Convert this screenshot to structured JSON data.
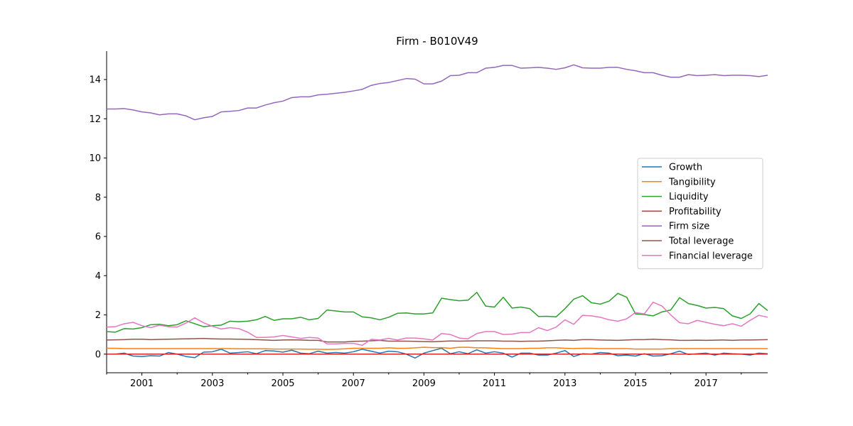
{
  "chart_data": {
    "type": "line",
    "title": "Firm - B010V49",
    "xlabel": "",
    "ylabel": "",
    "xlim": [
      2000.0,
      2018.75
    ],
    "ylim": [
      -0.95,
      15.45
    ],
    "x_ticks": [
      2001,
      2003,
      2005,
      2007,
      2009,
      2011,
      2013,
      2015,
      2017
    ],
    "y_ticks": [
      0,
      2,
      4,
      6,
      8,
      10,
      12,
      14
    ],
    "grid": false,
    "legend_position": "center-right",
    "x": [
      2000.0,
      2000.25,
      2000.5,
      2000.75,
      2001.0,
      2001.25,
      2001.5,
      2001.75,
      2002.0,
      2002.25,
      2002.5,
      2002.75,
      2003.0,
      2003.25,
      2003.5,
      2003.75,
      2004.0,
      2004.25,
      2004.5,
      2004.75,
      2005.0,
      2005.25,
      2005.5,
      2005.75,
      2006.0,
      2006.25,
      2006.5,
      2006.75,
      2007.0,
      2007.25,
      2007.5,
      2007.75,
      2008.0,
      2008.25,
      2008.5,
      2008.75,
      2009.0,
      2009.25,
      2009.5,
      2009.75,
      2010.0,
      2010.25,
      2010.5,
      2010.75,
      2011.0,
      2011.25,
      2011.5,
      2011.75,
      2012.0,
      2012.25,
      2012.5,
      2012.75,
      2013.0,
      2013.25,
      2013.5,
      2013.75,
      2014.0,
      2014.25,
      2014.5,
      2014.75,
      2015.0,
      2015.25,
      2015.5,
      2015.75,
      2016.0,
      2016.25,
      2016.5,
      2016.75,
      2017.0,
      2017.25,
      2017.5,
      2017.75,
      2018.0,
      2018.25,
      2018.5,
      2018.75
    ],
    "series": [
      {
        "name": "Growth",
        "color": "#1f77b4",
        "values": [
          0.0,
          0.0,
          0.05,
          -0.1,
          -0.12,
          -0.08,
          -0.1,
          0.08,
          0.0,
          -0.12,
          -0.18,
          0.1,
          0.12,
          0.25,
          0.05,
          0.08,
          0.12,
          0.02,
          0.18,
          0.16,
          0.1,
          0.2,
          0.05,
          0.02,
          0.15,
          0.05,
          0.08,
          0.05,
          0.12,
          0.25,
          0.15,
          0.05,
          0.15,
          0.12,
          0.0,
          -0.2,
          0.05,
          0.18,
          0.3,
          0.02,
          0.12,
          0.02,
          0.22,
          0.05,
          0.12,
          0.05,
          -0.15,
          0.05,
          0.05,
          -0.05,
          -0.05,
          0.05,
          0.18,
          -0.12,
          0.02,
          0.0,
          0.08,
          0.05,
          -0.08,
          -0.05,
          -0.1,
          0.02,
          -0.1,
          -0.08,
          0.02,
          0.15,
          -0.02,
          0.02,
          0.05,
          -0.05,
          0.05,
          0.02,
          0.0,
          -0.05,
          0.05,
          0.02
        ]
      },
      {
        "name": "Tangibility",
        "color": "#ff7f0e",
        "values": [
          0.3,
          0.3,
          0.28,
          0.28,
          0.28,
          0.28,
          0.28,
          0.28,
          0.28,
          0.28,
          0.28,
          0.28,
          0.28,
          0.28,
          0.28,
          0.27,
          0.27,
          0.27,
          0.27,
          0.26,
          0.26,
          0.26,
          0.26,
          0.25,
          0.25,
          0.24,
          0.25,
          0.27,
          0.3,
          0.3,
          0.3,
          0.3,
          0.32,
          0.3,
          0.3,
          0.32,
          0.35,
          0.33,
          0.33,
          0.3,
          0.35,
          0.35,
          0.32,
          0.32,
          0.3,
          0.28,
          0.28,
          0.28,
          0.3,
          0.3,
          0.32,
          0.32,
          0.3,
          0.28,
          0.3,
          0.3,
          0.28,
          0.28,
          0.28,
          0.28,
          0.26,
          0.26,
          0.26,
          0.26,
          0.28,
          0.28,
          0.28,
          0.28,
          0.28,
          0.28,
          0.28,
          0.28,
          0.28,
          0.28,
          0.28,
          0.28
        ]
      },
      {
        "name": "Liquidity",
        "color": "#2ca02c",
        "values": [
          1.15,
          1.12,
          1.3,
          1.28,
          1.35,
          1.5,
          1.52,
          1.45,
          1.5,
          1.7,
          1.55,
          1.4,
          1.45,
          1.48,
          1.68,
          1.65,
          1.68,
          1.75,
          1.92,
          1.72,
          1.8,
          1.8,
          1.88,
          1.75,
          1.82,
          2.25,
          2.2,
          2.15,
          2.15,
          1.9,
          1.85,
          1.75,
          1.88,
          2.08,
          2.1,
          2.05,
          2.05,
          2.1,
          2.85,
          2.78,
          2.72,
          2.75,
          3.15,
          2.45,
          2.4,
          2.9,
          2.35,
          2.4,
          2.32,
          1.92,
          1.93,
          1.9,
          2.32,
          2.8,
          2.98,
          2.62,
          2.55,
          2.7,
          3.1,
          2.9,
          2.05,
          2.02,
          1.95,
          2.15,
          2.25,
          2.88,
          2.58,
          2.48,
          2.35,
          2.38,
          2.32,
          1.95,
          1.82,
          2.05,
          2.58,
          2.22
        ]
      },
      {
        "name": "Profitability",
        "color": "#d62728",
        "values": [
          0.0,
          0.0,
          0.0,
          0.0,
          0.0,
          0.0,
          0.0,
          0.0,
          0.0,
          0.0,
          0.0,
          0.0,
          0.0,
          0.0,
          0.0,
          0.0,
          0.0,
          0.0,
          0.0,
          0.0,
          0.0,
          0.0,
          0.0,
          0.0,
          0.0,
          0.0,
          0.0,
          0.0,
          0.0,
          0.0,
          0.0,
          0.0,
          0.0,
          0.0,
          0.0,
          0.0,
          0.0,
          0.0,
          0.0,
          0.0,
          0.0,
          0.0,
          0.0,
          0.0,
          0.0,
          0.0,
          0.0,
          0.0,
          0.0,
          0.0,
          0.0,
          0.0,
          0.0,
          0.0,
          0.0,
          0.0,
          0.0,
          0.0,
          0.0,
          0.0,
          0.0,
          0.0,
          0.0,
          0.0,
          0.0,
          0.0,
          0.0,
          0.0,
          0.0,
          0.0,
          0.0,
          0.0,
          0.0,
          0.0,
          0.0,
          0.0
        ]
      },
      {
        "name": "Firm size",
        "color": "#9467bd",
        "values": [
          12.5,
          12.5,
          12.52,
          12.45,
          12.35,
          12.3,
          12.2,
          12.25,
          12.25,
          12.15,
          11.95,
          12.05,
          12.12,
          12.35,
          12.38,
          12.42,
          12.55,
          12.55,
          12.7,
          12.82,
          12.9,
          13.08,
          13.12,
          13.12,
          13.22,
          13.25,
          13.3,
          13.35,
          13.42,
          13.5,
          13.7,
          13.8,
          13.85,
          13.95,
          14.05,
          14.02,
          13.78,
          13.78,
          13.92,
          14.2,
          14.22,
          14.35,
          14.35,
          14.58,
          14.62,
          14.72,
          14.72,
          14.58,
          14.6,
          14.62,
          14.58,
          14.52,
          14.6,
          14.75,
          14.6,
          14.58,
          14.58,
          14.62,
          14.62,
          14.52,
          14.45,
          14.35,
          14.35,
          14.22,
          14.12,
          14.12,
          14.25,
          14.2,
          14.22,
          14.25,
          14.2,
          14.22,
          14.22,
          14.2,
          14.15,
          14.22
        ]
      },
      {
        "name": "Total leverage",
        "color": "#8c564b",
        "values": [
          0.72,
          0.73,
          0.74,
          0.76,
          0.76,
          0.74,
          0.75,
          0.76,
          0.77,
          0.78,
          0.79,
          0.8,
          0.78,
          0.77,
          0.77,
          0.76,
          0.75,
          0.74,
          0.72,
          0.7,
          0.72,
          0.73,
          0.72,
          0.7,
          0.7,
          0.62,
          0.62,
          0.62,
          0.65,
          0.66,
          0.68,
          0.7,
          0.66,
          0.66,
          0.66,
          0.65,
          0.64,
          0.63,
          0.65,
          0.67,
          0.66,
          0.67,
          0.68,
          0.68,
          0.68,
          0.66,
          0.66,
          0.65,
          0.66,
          0.66,
          0.68,
          0.7,
          0.72,
          0.7,
          0.74,
          0.74,
          0.72,
          0.71,
          0.7,
          0.72,
          0.74,
          0.74,
          0.76,
          0.74,
          0.73,
          0.7,
          0.7,
          0.71,
          0.7,
          0.71,
          0.72,
          0.7,
          0.72,
          0.72,
          0.73,
          0.74
        ]
      },
      {
        "name": "Financial leverage",
        "color": "#e377c2",
        "values": [
          1.38,
          1.4,
          1.55,
          1.62,
          1.45,
          1.35,
          1.48,
          1.4,
          1.38,
          1.58,
          1.85,
          1.6,
          1.42,
          1.28,
          1.35,
          1.3,
          1.12,
          0.85,
          0.85,
          0.88,
          0.95,
          0.88,
          0.8,
          0.85,
          0.82,
          0.52,
          0.52,
          0.55,
          0.55,
          0.45,
          0.75,
          0.72,
          0.8,
          0.72,
          0.82,
          0.82,
          0.78,
          0.72,
          1.05,
          1.0,
          0.82,
          0.78,
          1.05,
          1.15,
          1.15,
          1.0,
          1.02,
          1.1,
          1.1,
          1.35,
          1.2,
          1.38,
          1.75,
          1.52,
          1.98,
          1.95,
          1.88,
          1.75,
          1.68,
          1.8,
          2.12,
          2.05,
          2.65,
          2.45,
          2.0,
          1.6,
          1.55,
          1.72,
          1.62,
          1.52,
          1.45,
          1.55,
          1.42,
          1.72,
          1.98,
          1.88
        ]
      }
    ]
  }
}
